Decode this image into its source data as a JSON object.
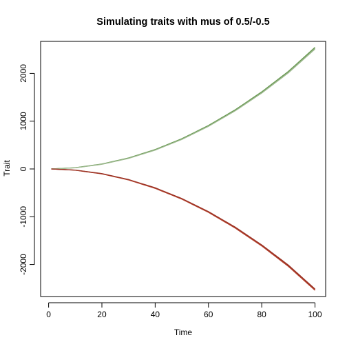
{
  "chart_data": {
    "type": "line",
    "title": "Simulating traits with mus of 0.5/-0.5",
    "xlabel": "Time",
    "ylabel": "Trait",
    "xlim": [
      -3,
      104
    ],
    "ylim": [
      -2670,
      2670
    ],
    "x_ticks": [
      0,
      20,
      40,
      60,
      80,
      100
    ],
    "x_tick_labels": [
      "0",
      "20",
      "40",
      "60",
      "80",
      "100"
    ],
    "y_ticks": [
      -2000,
      -1000,
      0,
      1000,
      2000
    ],
    "y_tick_labels": [
      "-2000",
      "-1000",
      "0",
      "1000",
      "2000"
    ],
    "grid": false,
    "legend": "none",
    "series": [
      {
        "color": "#8fae7f",
        "mu": 0.5,
        "x": [
          1,
          10,
          20,
          30,
          40,
          50,
          60,
          70,
          80,
          90,
          100
        ],
        "values": [
          0,
          25,
          100,
          225,
          400,
          625,
          900,
          1225,
          1600,
          2025,
          2525
        ]
      },
      {
        "color": "#6b9a55",
        "mu": 0.5,
        "x": [
          1,
          10,
          20,
          30,
          40,
          50,
          60,
          70,
          80,
          90,
          100
        ],
        "values": [
          0,
          27,
          104,
          230,
          407,
          633,
          910,
          1237,
          1614,
          2042,
          2545
        ]
      },
      {
        "color": "#a0bb92",
        "mu": 0.5,
        "x": [
          1,
          10,
          20,
          30,
          40,
          50,
          60,
          70,
          80,
          90,
          100
        ],
        "values": [
          0,
          23,
          97,
          220,
          393,
          617,
          891,
          1214,
          1587,
          2010,
          2508
        ]
      },
      {
        "color": "#8b2a1f",
        "mu": -0.5,
        "x": [
          1,
          10,
          20,
          30,
          40,
          50,
          60,
          70,
          80,
          90,
          100
        ],
        "values": [
          0,
          -25,
          -100,
          -225,
          -400,
          -625,
          -900,
          -1225,
          -1600,
          -2025,
          -2525
        ]
      },
      {
        "color": "#b5402c",
        "mu": -0.5,
        "x": [
          1,
          10,
          20,
          30,
          40,
          50,
          60,
          70,
          80,
          90,
          100
        ],
        "values": [
          0,
          -27,
          -104,
          -230,
          -407,
          -632,
          -909,
          -1236,
          -1612,
          -2040,
          -2540
        ]
      },
      {
        "color": "#9a3325",
        "mu": -0.5,
        "x": [
          1,
          10,
          20,
          30,
          40,
          50,
          60,
          70,
          80,
          90,
          100
        ],
        "values": [
          0,
          -23,
          -97,
          -221,
          -394,
          -618,
          -892,
          -1215,
          -1589,
          -2012,
          -2512
        ]
      }
    ]
  }
}
